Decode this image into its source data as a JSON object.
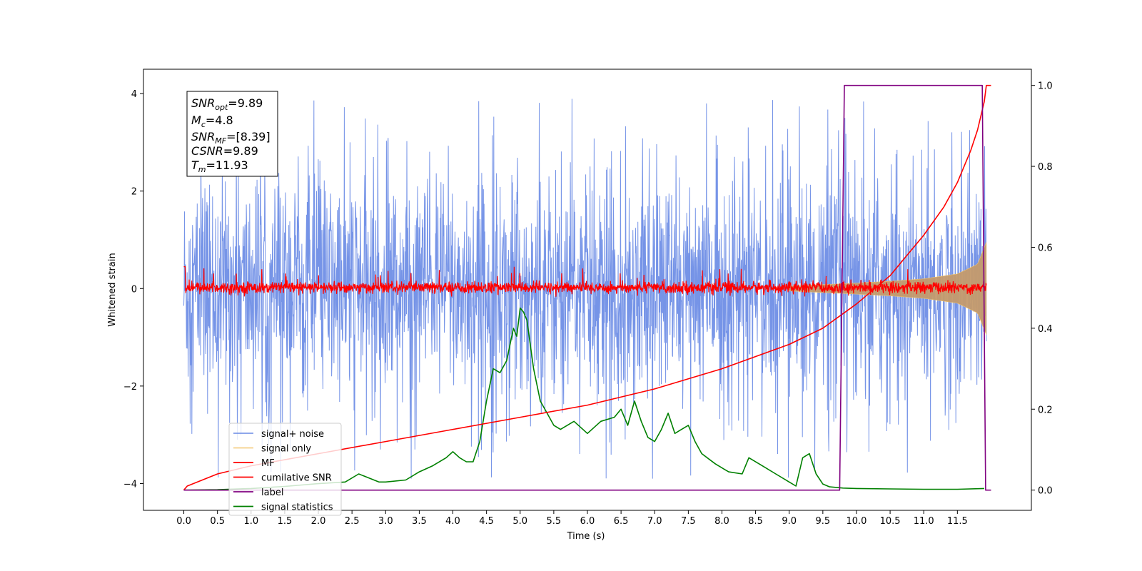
{
  "chart_data": {
    "type": "line",
    "xlabel": "Time (s)",
    "ylabel": "Whitened strain",
    "ylabel_right": "",
    "xlim": [
      -0.6,
      12.6
    ],
    "ylim": [
      -4.55,
      4.5
    ],
    "ylim_right": [
      -0.05,
      1.04
    ],
    "x_ticks": [
      "0.0",
      "0.5",
      "1.0",
      "1.5",
      "2.0",
      "2.5",
      "3.0",
      "3.5",
      "4.0",
      "4.5",
      "5.0",
      "5.5",
      "6.0",
      "6.5",
      "7.0",
      "7.5",
      "8.0",
      "8.5",
      "9.0",
      "9.5",
      "10.0",
      "10.5",
      "11.0",
      "11.5"
    ],
    "y_ticks": [
      "−4",
      "−2",
      "0",
      "2",
      "4"
    ],
    "y_ticks_right": [
      "0.0",
      "0.2",
      "0.4",
      "0.6",
      "0.8",
      "1.0"
    ],
    "grid": false,
    "legend_position": "lower-left",
    "info_box": {
      "snr_opt": {
        "sym": "SNR",
        "sub": "opt",
        "val": "=9.89"
      },
      "mc": {
        "sym": "M",
        "sub": "c",
        "val": "=4.8"
      },
      "snr_mf": {
        "sym": "SNR",
        "sub": "MF",
        "val": "=[8.39]"
      },
      "csnr": {
        "sym": "CSNR",
        "sub": "",
        "val": "=9.89"
      },
      "tm": {
        "sym": "T",
        "sub": "m",
        "val": "=11.93"
      }
    },
    "series": [
      {
        "name": "signal+ noise",
        "color": "#6f8ee6",
        "axis": "left",
        "description": "whitened noisy strain, roughly uniform amplitude; typical extent about -2.5 to +2.5 with spikes to about -3.9 and +4.05",
        "x_range": [
          0.0,
          11.93
        ],
        "typical_amplitude": 2.5,
        "peak_max": 4.05,
        "peak_min": -3.9
      },
      {
        "name": "signal only",
        "color": "#f2c46a",
        "axis": "left",
        "description": "chirp signal, shown as tan envelope growing toward merger",
        "envelope": {
          "x": [
            9.0,
            9.8,
            10.5,
            11.0,
            11.5,
            11.8,
            11.93
          ],
          "amp": [
            0.05,
            0.1,
            0.15,
            0.2,
            0.3,
            0.5,
            0.95
          ]
        }
      },
      {
        "name": "MF",
        "color": "#ff0000",
        "axis": "left",
        "description": "matched-filter output, narrow noise band about -0.15 to +0.2 with spikes to about 0.45",
        "x_range": [
          0.0,
          11.93
        ],
        "typical_amplitude": 0.15,
        "peak_max": 0.45
      },
      {
        "name": "cumilative SNR",
        "color": "#ff0000",
        "axis": "right",
        "x": [
          0.0,
          0.05,
          0.5,
          1.0,
          2.0,
          3.0,
          4.0,
          5.0,
          6.0,
          7.0,
          8.0,
          9.0,
          9.5,
          10.0,
          10.5,
          11.0,
          11.3,
          11.5,
          11.7,
          11.8,
          11.9,
          11.93,
          12.0
        ],
        "values": [
          0.0,
          0.01,
          0.04,
          0.06,
          0.09,
          0.12,
          0.15,
          0.18,
          0.21,
          0.25,
          0.3,
          0.36,
          0.4,
          0.46,
          0.53,
          0.63,
          0.7,
          0.76,
          0.84,
          0.89,
          0.96,
          1.0,
          1.0
        ]
      },
      {
        "name": "label",
        "color": "#800080",
        "axis": "right",
        "x": [
          0.0,
          9.75,
          9.82,
          11.87,
          11.92,
          12.0
        ],
        "values": [
          0.0,
          0.0,
          1.0,
          1.0,
          0.0,
          0.0
        ]
      },
      {
        "name": "signal statistics",
        "color": "#008000",
        "axis": "right",
        "x": [
          0.0,
          0.5,
          1.0,
          1.5,
          2.0,
          2.4,
          2.6,
          2.9,
          3.0,
          3.3,
          3.5,
          3.7,
          3.9,
          4.0,
          4.1,
          4.2,
          4.3,
          4.4,
          4.5,
          4.6,
          4.7,
          4.8,
          4.9,
          4.95,
          5.0,
          5.05,
          5.1,
          5.15,
          5.2,
          5.3,
          5.4,
          5.5,
          5.6,
          5.8,
          6.0,
          6.2,
          6.4,
          6.5,
          6.6,
          6.7,
          6.8,
          6.9,
          7.0,
          7.1,
          7.2,
          7.3,
          7.4,
          7.5,
          7.6,
          7.7,
          7.9,
          8.1,
          8.3,
          8.4,
          8.6,
          8.8,
          9.0,
          9.1,
          9.2,
          9.3,
          9.4,
          9.5,
          9.6,
          9.8,
          10.0,
          10.5,
          11.0,
          11.5,
          11.9
        ],
        "values": [
          0.0,
          0.001,
          0.004,
          0.009,
          0.016,
          0.02,
          0.04,
          0.02,
          0.02,
          0.025,
          0.045,
          0.06,
          0.08,
          0.095,
          0.08,
          0.07,
          0.07,
          0.12,
          0.22,
          0.3,
          0.29,
          0.32,
          0.4,
          0.38,
          0.45,
          0.44,
          0.42,
          0.36,
          0.3,
          0.22,
          0.19,
          0.16,
          0.15,
          0.17,
          0.14,
          0.17,
          0.18,
          0.2,
          0.16,
          0.22,
          0.17,
          0.13,
          0.12,
          0.15,
          0.19,
          0.14,
          0.15,
          0.16,
          0.12,
          0.09,
          0.065,
          0.045,
          0.04,
          0.08,
          0.06,
          0.04,
          0.02,
          0.01,
          0.08,
          0.09,
          0.04,
          0.015,
          0.008,
          0.005,
          0.004,
          0.003,
          0.002,
          0.002,
          0.004
        ]
      }
    ]
  }
}
